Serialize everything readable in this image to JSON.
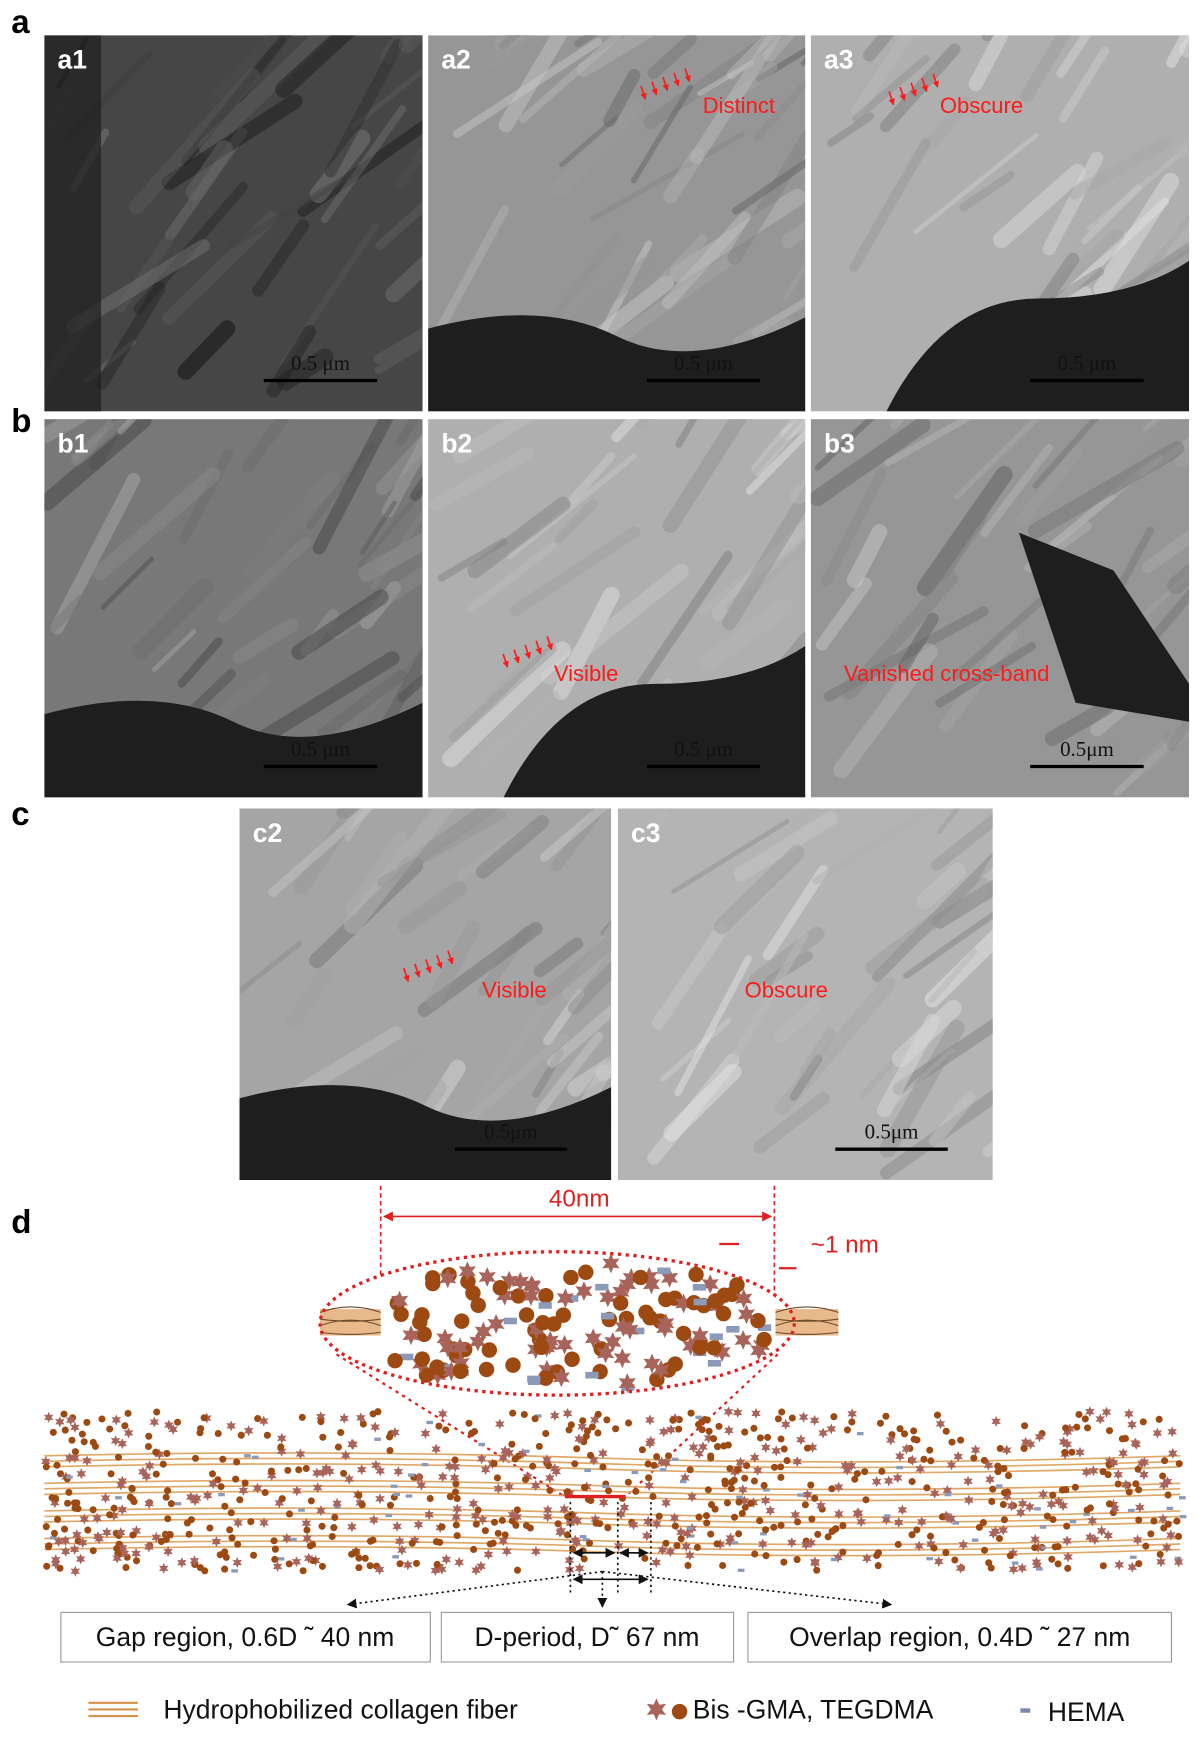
{
  "panel_labels": [
    "a",
    "b",
    "c",
    "d"
  ],
  "micrographs": [
    {
      "label": "a1",
      "scale_bar": "0.5 μm"
    },
    {
      "label": "a2",
      "scale_bar": "0.5 μm",
      "annotation": "Distinct"
    },
    {
      "label": "a3",
      "scale_bar": "0.5 μm",
      "annotation": "Obscure"
    },
    {
      "label": "b1",
      "scale_bar": "0.5 μm"
    },
    {
      "label": "b2",
      "scale_bar": "0.5 μm",
      "annotation": "Visible"
    },
    {
      "label": "b3",
      "scale_bar": "0.5μm",
      "annotation": "Vanished cross-band"
    },
    {
      "label": "c2",
      "scale_bar": "0.5μm",
      "annotation": "Visible"
    },
    {
      "label": "c3",
      "scale_bar": "0.5μm",
      "annotation": "Obscure"
    }
  ],
  "diagram": {
    "width_label": "40nm",
    "gap_label": "~1 nm",
    "boxes": [
      "Gap region, 0.6D ˜ 40 nm",
      "D-period, D˜ 67 nm",
      "Overlap region, 0.4D ˜ 27 nm"
    ],
    "legend": [
      "Hydrophobilized collagen fiber",
      "Bis -GMA, TEGDMA",
      "HEMA"
    ]
  }
}
